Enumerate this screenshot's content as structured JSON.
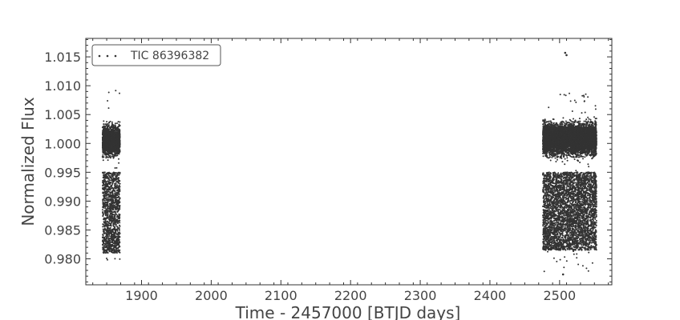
{
  "chart_data": {
    "type": "scatter",
    "title": "",
    "xlabel": "Time - 2457000 [BTJD days]",
    "ylabel": "Normalized Flux",
    "xlim": [
      1820,
      2575
    ],
    "ylim": [
      0.9755,
      1.0182
    ],
    "x_ticks": [
      1900,
      2000,
      2100,
      2200,
      2300,
      2400,
      2500
    ],
    "x_tick_labels": [
      "1900",
      "2000",
      "2100",
      "2200",
      "2300",
      "2400",
      "2500"
    ],
    "y_ticks": [
      0.98,
      0.985,
      0.99,
      0.995,
      1.0,
      1.005,
      1.01,
      1.015
    ],
    "y_tick_labels": [
      "0.980",
      "0.985",
      "0.990",
      "0.995",
      "1.000",
      "1.005",
      "1.010",
      "1.015"
    ],
    "grid": false,
    "legend_position": "upper-left",
    "series": [
      {
        "name": "TIC 86396382",
        "color": "#333333",
        "marker": "point",
        "segments": [
          {
            "x_range": [
              1844,
              1869
            ],
            "dense_flux_range": [
              0.9955,
              1.0055
            ],
            "lower_flux_range": [
              0.981,
              0.995
            ],
            "extreme_min": 0.9788,
            "extreme_max": 1.0093
          },
          {
            "x_range": [
              2476,
              2553
            ],
            "dense_flux_range": [
              0.9955,
              1.006
            ],
            "lower_flux_range": [
              0.9815,
              0.995
            ],
            "extreme_min": 0.9775,
            "extreme_max": 1.0087
          }
        ],
        "outliers": [
          {
            "x": 2508,
            "y": 1.0157
          },
          {
            "x": 2510,
            "y": 1.0153
          },
          {
            "x": 2505,
            "y": 0.9773
          }
        ]
      }
    ]
  }
}
